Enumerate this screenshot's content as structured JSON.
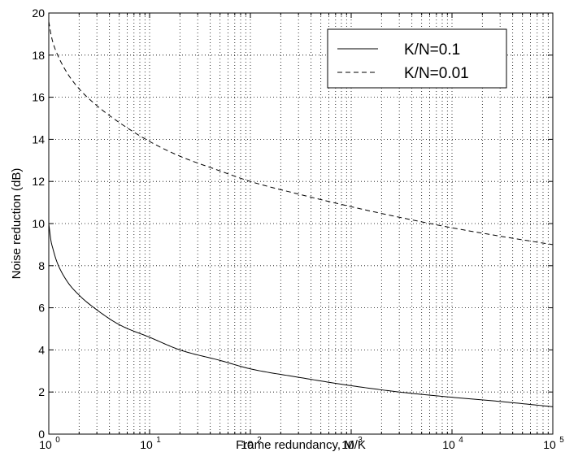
{
  "chart_data": {
    "type": "line",
    "title": "",
    "xlabel": "Frame redundancy, M/K",
    "ylabel": "Noise reduction (dB)",
    "x_scale": "log",
    "xlim": [
      1,
      100000
    ],
    "ylim": [
      0,
      20
    ],
    "grid": true,
    "legend_position": "top-right",
    "x_ticks": [
      {
        "value": 1,
        "base": "10",
        "exp": "0"
      },
      {
        "value": 10,
        "base": "10",
        "exp": "1"
      },
      {
        "value": 100,
        "base": "10",
        "exp": "2"
      },
      {
        "value": 1000,
        "base": "10",
        "exp": "3"
      },
      {
        "value": 10000,
        "base": "10",
        "exp": "4"
      },
      {
        "value": 100000,
        "base": "10",
        "exp": "5"
      }
    ],
    "y_ticks": [
      0,
      2,
      4,
      6,
      8,
      10,
      12,
      14,
      16,
      18,
      20
    ],
    "y_tick_labels": [
      "0",
      "2",
      "4",
      "6",
      "8",
      "10",
      "12",
      "14",
      "16",
      "18",
      "20"
    ],
    "series": [
      {
        "name": "K/N=0.1",
        "line_style": "solid",
        "color": "#000000",
        "x": [
          1,
          1.05,
          1.1,
          1.2,
          1.5,
          2,
          3,
          5,
          10,
          20,
          50,
          100,
          300,
          1000,
          3000,
          10000,
          30000,
          100000
        ],
        "y": [
          10.0,
          9.2,
          8.8,
          8.2,
          7.3,
          6.6,
          5.9,
          5.2,
          4.6,
          4.0,
          3.5,
          3.1,
          2.7,
          2.3,
          2.0,
          1.75,
          1.55,
          1.3
        ]
      },
      {
        "name": "K/N=0.01",
        "line_style": "dashed",
        "color": "#000000",
        "x": [
          1,
          1.05,
          1.1,
          1.2,
          1.5,
          2,
          3,
          5,
          10,
          20,
          50,
          100,
          300,
          1000,
          3000,
          10000,
          30000,
          100000
        ],
        "y": [
          19.6,
          19.0,
          18.6,
          18.1,
          17.2,
          16.4,
          15.6,
          14.8,
          13.9,
          13.2,
          12.5,
          12.0,
          11.4,
          10.8,
          10.3,
          9.8,
          9.4,
          9.0
        ]
      }
    ]
  }
}
